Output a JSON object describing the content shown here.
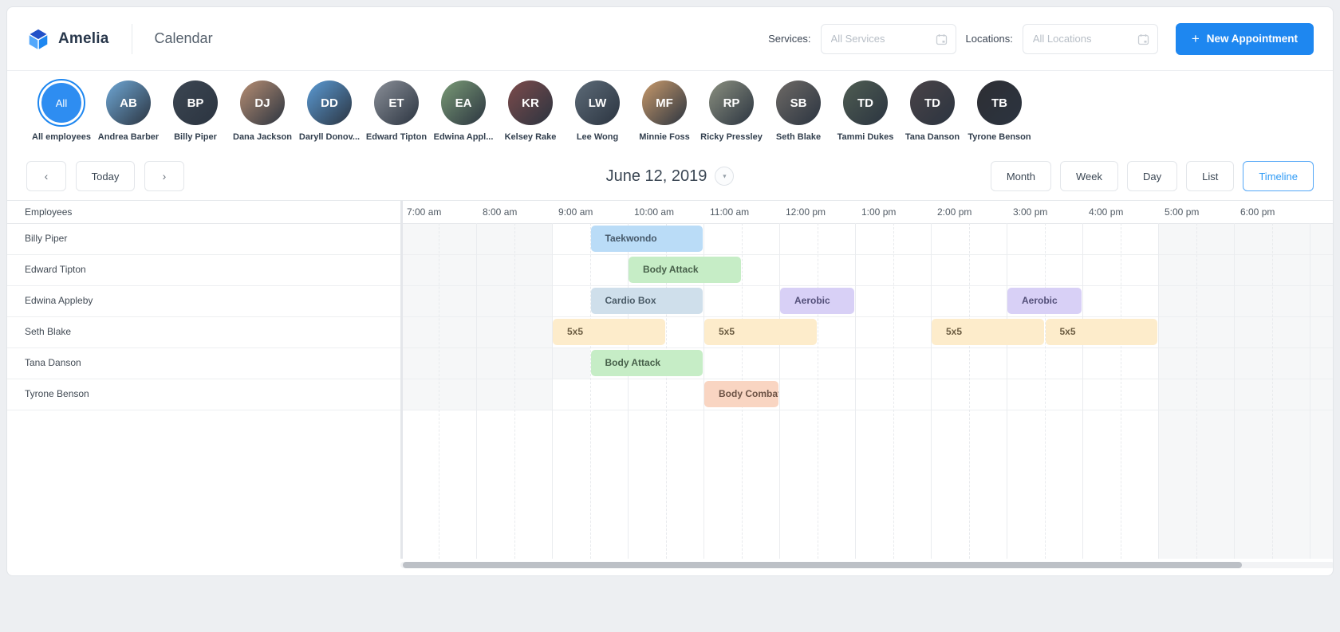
{
  "app": {
    "brand": "Amelia",
    "page_title": "Calendar"
  },
  "icons": {
    "plus": "+",
    "chevron_left": "‹",
    "chevron_right": "›",
    "caret_down": "▼"
  },
  "filters": {
    "services_label": "Services:",
    "services_placeholder": "All Services",
    "locations_label": "Locations:",
    "locations_placeholder": "All Locations",
    "new_appointment_label": "New Appointment"
  },
  "staff": [
    {
      "label": "All employees",
      "short": "All",
      "type": "all",
      "selected": true
    },
    {
      "label": "Andrea Barber",
      "initials": "AB",
      "color": "#6fa8d6"
    },
    {
      "label": "Billy Piper",
      "initials": "BP",
      "color": "#3c4652"
    },
    {
      "label": "Dana Jackson",
      "initials": "DJ",
      "color": "#b78e73"
    },
    {
      "label": "Daryll Donov...",
      "initials": "DD",
      "color": "#5b9bd5"
    },
    {
      "label": "Edward Tipton",
      "initials": "ET",
      "color": "#8a8f98"
    },
    {
      "label": "Edwina Appl...",
      "initials": "EA",
      "color": "#7a9b76"
    },
    {
      "label": "Kelsey Rake",
      "initials": "KR",
      "color": "#7d4b4b"
    },
    {
      "label": "Lee Wong",
      "initials": "LW",
      "color": "#5d6b78"
    },
    {
      "label": "Minnie Foss",
      "initials": "MF",
      "color": "#c99a6b"
    },
    {
      "label": "Ricky Pressley",
      "initials": "RP",
      "color": "#8b9080"
    },
    {
      "label": "Seth Blake",
      "initials": "SB",
      "color": "#6e6a66"
    },
    {
      "label": "Tammi Dukes",
      "initials": "TD",
      "color": "#4f5d52"
    },
    {
      "label": "Tana Danson",
      "initials": "TD",
      "color": "#4a4347"
    },
    {
      "label": "Tyrone Benson",
      "initials": "TB",
      "color": "#2e2e33"
    }
  ],
  "toolbar": {
    "today_label": "Today",
    "date_label": "June 12, 2019",
    "views": [
      "Month",
      "Week",
      "Day",
      "List",
      "Timeline"
    ],
    "active_view": "Timeline"
  },
  "event_colors": {
    "taekwondo": {
      "bg": "#badcf7",
      "text": "#46596a"
    },
    "body_attack": {
      "bg": "#c6edc6",
      "text": "#47604a"
    },
    "cardio_box": {
      "bg": "#cfdfeb",
      "text": "#4a5b67"
    },
    "aerobic": {
      "bg": "#d8d0f6",
      "text": "#534f79"
    },
    "five_by_five": {
      "bg": "#fdeccb",
      "text": "#6b5c41"
    },
    "body_combat": {
      "bg": "#f9d5c2",
      "text": "#6d5346"
    }
  },
  "timeline": {
    "employees_header": "Employees",
    "hours": [
      "7:00 am",
      "8:00 am",
      "9:00 am",
      "10:00 am",
      "11:00 am",
      "12:00 pm",
      "1:00 pm",
      "2:00 pm",
      "3:00 pm",
      "4:00 pm",
      "5:00 pm",
      "6:00 pm"
    ],
    "day_start_hour": 7,
    "off_hours_after": 17,
    "rows": [
      {
        "name": "Billy Piper",
        "work_start": 9,
        "events": [
          {
            "title": "Taekwondo",
            "type": "taekwondo",
            "start": 9.5,
            "end": 11
          }
        ]
      },
      {
        "name": "Edward Tipton",
        "work_start": 9,
        "events": [
          {
            "title": "Body Attack",
            "type": "body_attack",
            "start": 10,
            "end": 11.5
          }
        ]
      },
      {
        "name": "Edwina Appleby",
        "work_start": 9,
        "events": [
          {
            "title": "Cardio Box",
            "type": "cardio_box",
            "start": 9.5,
            "end": 11
          },
          {
            "title": "Aerobic",
            "type": "aerobic",
            "start": 12,
            "end": 13
          },
          {
            "title": "Aerobic",
            "type": "aerobic",
            "start": 15,
            "end": 16
          }
        ]
      },
      {
        "name": "Seth Blake",
        "work_start": 9,
        "events": [
          {
            "title": "5x5",
            "type": "five_by_five",
            "start": 9,
            "end": 10.5
          },
          {
            "title": "5x5",
            "type": "five_by_five",
            "start": 11,
            "end": 12.5
          },
          {
            "title": "5x5",
            "type": "five_by_five",
            "start": 14,
            "end": 15.5
          },
          {
            "title": "5x5",
            "type": "five_by_five",
            "start": 15.5,
            "end": 17
          }
        ]
      },
      {
        "name": "Tana Danson",
        "work_start": 9.5,
        "events": [
          {
            "title": "Body Attack",
            "type": "body_attack",
            "start": 9.5,
            "end": 11
          }
        ]
      },
      {
        "name": "Tyrone Benson",
        "work_start": 9,
        "events": [
          {
            "title": "Body Combat",
            "type": "body_combat",
            "start": 11,
            "end": 12
          }
        ]
      }
    ]
  },
  "colors": {
    "accent": "#1e87f0",
    "active_view_text": "#2f9bf6",
    "off_hours_bg": "#f6f7f8"
  }
}
